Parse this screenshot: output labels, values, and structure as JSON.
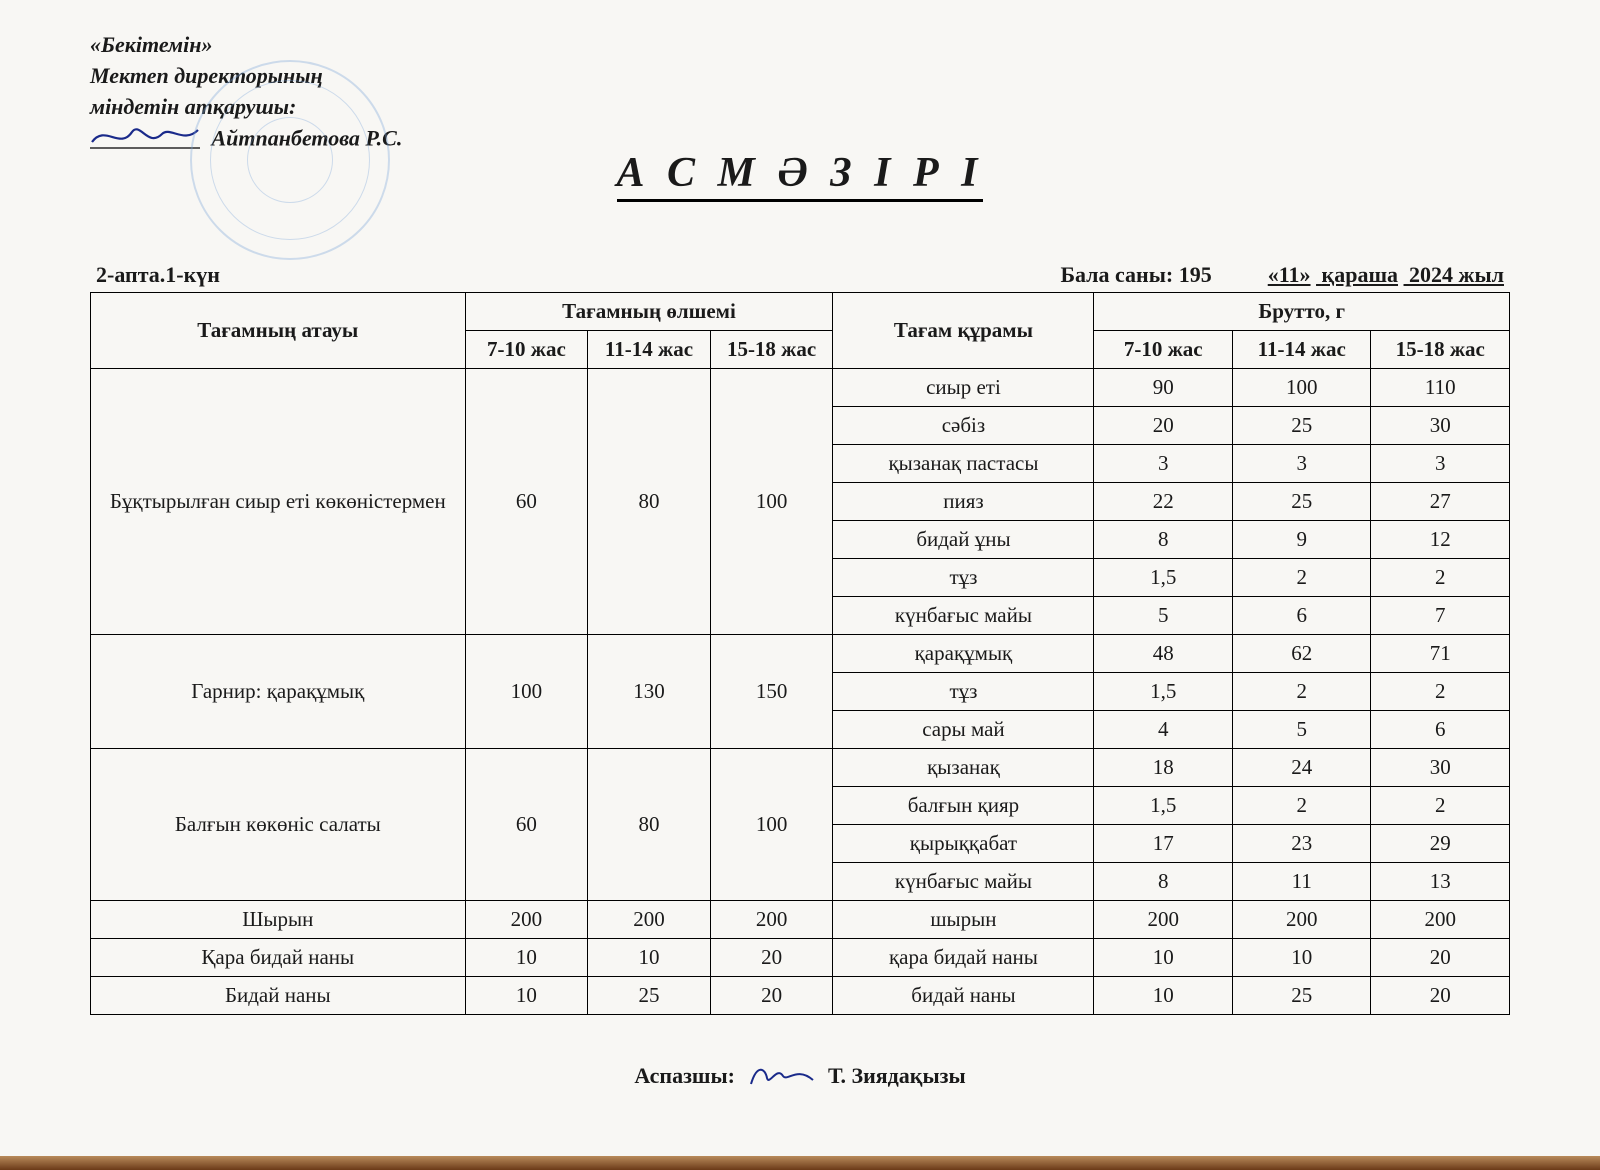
{
  "approval": {
    "line1": "«Бекітемін»",
    "line2": "Мектеп директорының",
    "line3": "міндетін атқарушы:",
    "name": "Айтпанбетова Р.С."
  },
  "title": "А С  М Ә З І Р І",
  "meta": {
    "week_day": "2-апта.1-күн",
    "children_label": "Бала саны:",
    "children_count": "195",
    "date_prefix": "«11»",
    "month": "қараша",
    "year": "2024 жыл"
  },
  "headers": {
    "dish": "Тағамның атауы",
    "size_group": "Тағамның өлшемі",
    "ingredient": "Тағам құрамы",
    "brutto_group": "Брутто, г",
    "age1": "7-10 жас",
    "age2": "11-14 жас",
    "age3": "15-18 жас"
  },
  "dishes": [
    {
      "name": "Бұқтырылған сиыр еті көкөністермен",
      "sizes": [
        "60",
        "80",
        "100"
      ],
      "ingredients": [
        {
          "name": "сиыр еті",
          "b": [
            "90",
            "100",
            "110"
          ]
        },
        {
          "name": "сәбіз",
          "b": [
            "20",
            "25",
            "30"
          ]
        },
        {
          "name": "қызанақ пастасы",
          "b": [
            "3",
            "3",
            "3"
          ]
        },
        {
          "name": "пияз",
          "b": [
            "22",
            "25",
            "27"
          ]
        },
        {
          "name": "бидай ұны",
          "b": [
            "8",
            "9",
            "12"
          ]
        },
        {
          "name": "тұз",
          "b": [
            "1,5",
            "2",
            "2"
          ]
        },
        {
          "name": "күнбағыс майы",
          "b": [
            "5",
            "6",
            "7"
          ]
        }
      ]
    },
    {
      "name": "Гарнир: қарақұмық",
      "sizes": [
        "100",
        "130",
        "150"
      ],
      "ingredients": [
        {
          "name": "қарақұмық",
          "b": [
            "48",
            "62",
            "71"
          ]
        },
        {
          "name": "тұз",
          "b": [
            "1,5",
            "2",
            "2"
          ]
        },
        {
          "name": "сары май",
          "b": [
            "4",
            "5",
            "6"
          ]
        }
      ]
    },
    {
      "name": "Балғын көкөніс  салаты",
      "sizes": [
        "60",
        "80",
        "100"
      ],
      "ingredients": [
        {
          "name": "қызанақ",
          "b": [
            "18",
            "24",
            "30"
          ]
        },
        {
          "name": "балғын қияр",
          "b": [
            "1,5",
            "2",
            "2"
          ]
        },
        {
          "name": "қырыққабат",
          "b": [
            "17",
            "23",
            "29"
          ]
        },
        {
          "name": "күнбағыс майы",
          "b": [
            "8",
            "11",
            "13"
          ]
        }
      ]
    },
    {
      "name": "Шырын",
      "sizes": [
        "200",
        "200",
        "200"
      ],
      "ingredients": [
        {
          "name": "шырын",
          "b": [
            "200",
            "200",
            "200"
          ]
        }
      ]
    },
    {
      "name": "Қара бидай наны",
      "sizes": [
        "10",
        "10",
        "20"
      ],
      "ingredients": [
        {
          "name": "қара бидай наны",
          "b": [
            "10",
            "10",
            "20"
          ]
        }
      ]
    },
    {
      "name": "Бидай наны",
      "sizes": [
        "10",
        "25",
        "20"
      ],
      "ingredients": [
        {
          "name": "бидай наны",
          "b": [
            "10",
            "25",
            "20"
          ]
        }
      ]
    }
  ],
  "footer": {
    "cook_label": "Аспазшы:",
    "cook_name": "Т. Зиядақызы"
  },
  "colors": {
    "stamp": "#7da6d9",
    "ink": "#1a2a8a",
    "paper": "#f8f7f4",
    "border": "#000000"
  }
}
